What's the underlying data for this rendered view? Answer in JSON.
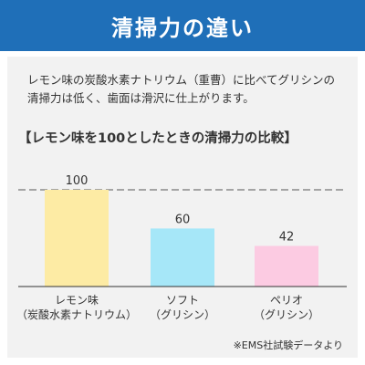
{
  "header": {
    "title": "清掃力の違い"
  },
  "description": "レモン味の炭酸水素ナトリウム（重曹）に比べてグリシンの清掃力は低く、歯面は滑沢に仕上がります。",
  "chart_data": {
    "type": "bar",
    "title": "【レモン味を100としたときの清掃力の比較】",
    "categories": [
      [
        "レモン味",
        "（炭酸水素ナトリウム）"
      ],
      [
        "ソフト",
        "（グリシン）"
      ],
      [
        "ペリオ",
        "（グリシン）"
      ]
    ],
    "values": [
      100,
      60,
      42
    ],
    "data_labels": [
      "100",
      "60",
      "42"
    ],
    "colors": [
      "#fdeba4",
      "#a6e7f8",
      "#fccbe2"
    ],
    "ylim": [
      0,
      100
    ],
    "reference_line": {
      "value": 100,
      "style": "dashed"
    },
    "xlabel": "",
    "ylabel": "",
    "grid": false
  },
  "footnote": "※EMS社試験データより"
}
